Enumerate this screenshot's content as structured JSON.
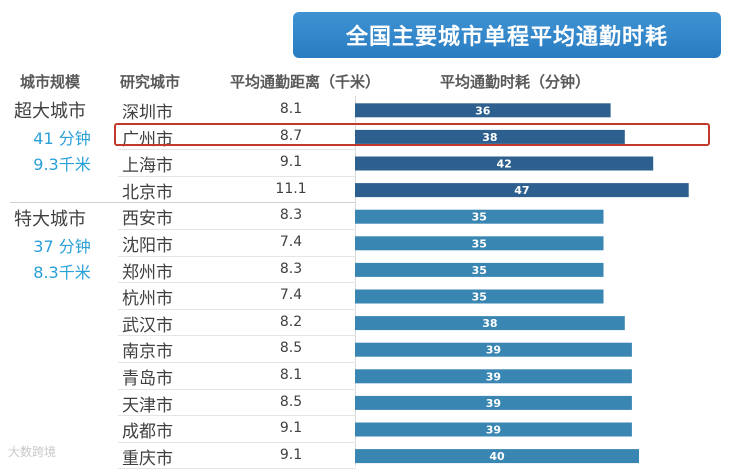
{
  "title": "全国主要城市单程平均通勤时耗",
  "headers": {
    "scale": "城市规模",
    "city": "研究城市",
    "distance": "平均通勤距离（千米）",
    "time": "平均通勤时耗（分钟）"
  },
  "tiers": [
    {
      "name": "超大城市",
      "avg_time": "41 分钟",
      "avg_distance": "9.3千米"
    },
    {
      "name": "特大城市",
      "avg_time": "37 分钟",
      "avg_distance": "8.3千米"
    }
  ],
  "highlighted_city": "广州市",
  "watermark": "大数跨境",
  "colors": {
    "super": "#2d5f8f",
    "mega": "#3a86b3",
    "title_bg": "#3388cc",
    "highlight": "#c0392b",
    "stat": "#2aa0d8"
  },
  "chart_data": {
    "type": "bar",
    "orientation": "horizontal",
    "title": "全国主要城市单程平均通勤时耗",
    "xlabel": "平均通勤时耗（分钟）",
    "categories": [
      "深圳市",
      "广州市",
      "上海市",
      "北京市",
      "西安市",
      "沈阳市",
      "郑州市",
      "杭州市",
      "武汉市",
      "南京市",
      "青岛市",
      "天津市",
      "成都市",
      "重庆市"
    ],
    "tier": [
      "超大城市",
      "超大城市",
      "超大城市",
      "超大城市",
      "特大城市",
      "特大城市",
      "特大城市",
      "特大城市",
      "特大城市",
      "特大城市",
      "特大城市",
      "特大城市",
      "特大城市",
      "特大城市"
    ],
    "distance_km": [
      "8.1",
      "8.7",
      "9.1",
      "11.1",
      "8.3",
      "7.4",
      "8.3",
      "7.4",
      "8.2",
      "8.5",
      "8.1",
      "8.5",
      "9.1",
      "9.1"
    ],
    "values": [
      36,
      38,
      42,
      47,
      35,
      35,
      35,
      35,
      38,
      39,
      39,
      39,
      39,
      40
    ]
  }
}
